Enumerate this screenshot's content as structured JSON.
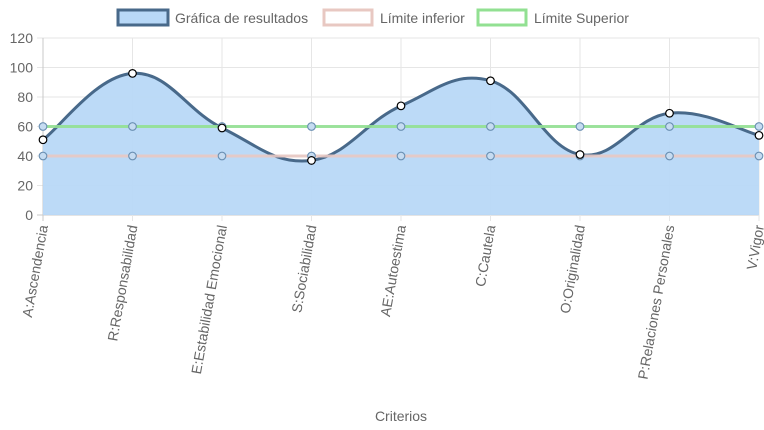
{
  "chart_data": {
    "type": "line",
    "categories": [
      "A:Ascendencia",
      "R:Responsabilidad",
      "E:Estabilidad Emocional",
      "S:Sociabilidad",
      "AE:Autoestima",
      "C:Cautela",
      "O:Originalidad",
      "P:Relaciones Personales",
      "V:Vigor"
    ],
    "series": [
      {
        "name": "Gráfica de resultados",
        "values": [
          51,
          96,
          59,
          37,
          74,
          91,
          41,
          69,
          54
        ],
        "color": "#48698a",
        "fill": "#b8d8f7"
      },
      {
        "name": "Límite inferior",
        "values": [
          40,
          40,
          40,
          40,
          40,
          40,
          40,
          40,
          40
        ],
        "color": "#e8c8c2",
        "fill": "#ffffff"
      },
      {
        "name": "Límite Superior",
        "values": [
          60,
          60,
          60,
          60,
          60,
          60,
          60,
          60,
          60
        ],
        "color": "#92e092",
        "fill": "#ffffff"
      }
    ],
    "xlabel": "Criterios",
    "ylabel": "",
    "ylim": [
      0,
      120
    ],
    "yticks": [
      0,
      20,
      40,
      60,
      80,
      100,
      120
    ],
    "grid": true,
    "legend": "top"
  }
}
